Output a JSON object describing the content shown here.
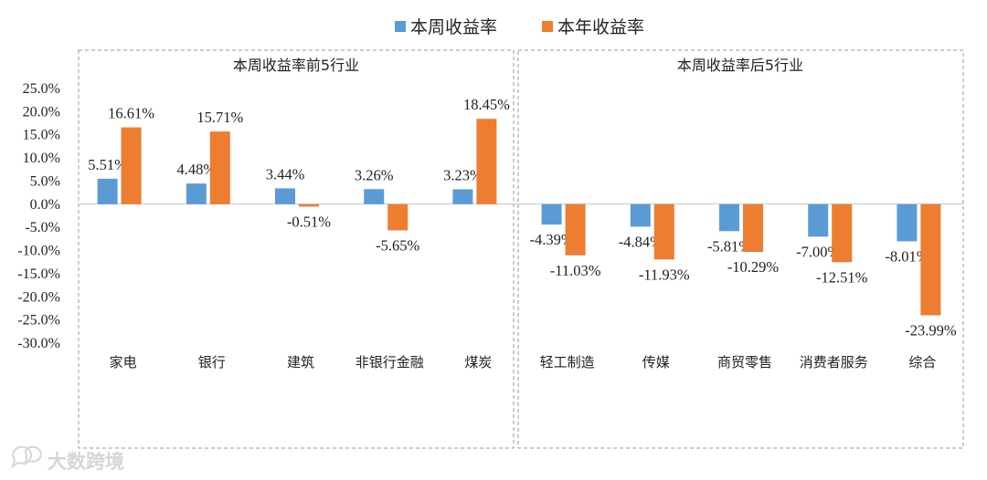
{
  "chart_data": {
    "type": "bar",
    "legend": {
      "placement": "top-center"
    },
    "series_colors": [
      "#5B9BD5",
      "#ED7D31"
    ],
    "yaxis": {
      "ylim": [
        -30,
        25
      ],
      "ticks": [
        "25.0%",
        "20.0%",
        "15.0%",
        "10.0%",
        "5.0%",
        "0.0%",
        "-5.0%",
        "-10.0%",
        "-15.0%",
        "-20.0%",
        "-25.0%",
        "-30.0%"
      ]
    },
    "panels": [
      {
        "title": "本周收益率前5行业",
        "categories": [
          "家电",
          "银行",
          "建筑",
          "非银行金融",
          "煤炭"
        ],
        "series": [
          {
            "name": "本周收益率",
            "values": [
              5.51,
              4.48,
              3.44,
              3.26,
              3.23
            ],
            "labels": [
              "5.51%",
              "4.48%",
              "3.44%",
              "3.26%",
              "3.23%"
            ]
          },
          {
            "name": "本年收益率",
            "values": [
              16.61,
              15.71,
              -0.51,
              -5.65,
              18.45
            ],
            "labels": [
              "16.61%",
              "15.71%",
              "-0.51%",
              "-5.65%",
              "18.45%"
            ]
          }
        ]
      },
      {
        "title": "本周收益率后5行业",
        "categories": [
          "轻工制造",
          "传媒",
          "商贸零售",
          "消费者服务",
          "综合"
        ],
        "series": [
          {
            "name": "本周收益率",
            "values": [
              -4.39,
              -4.84,
              -5.81,
              -7.0,
              -8.01
            ],
            "labels": [
              "-4.39%",
              "-4.84%",
              "-5.81%",
              "-7.00%",
              "-8.01%"
            ]
          },
          {
            "name": "本年收益率",
            "values": [
              -11.03,
              -11.93,
              -10.29,
              -12.51,
              -23.99
            ],
            "labels": [
              "-11.03%",
              "-11.93%",
              "-10.29%",
              "-12.51%",
              "-23.99%"
            ]
          }
        ]
      }
    ]
  },
  "watermark": {
    "text": "大数跨境",
    "icon": "speech-bubble-logo-icon"
  }
}
